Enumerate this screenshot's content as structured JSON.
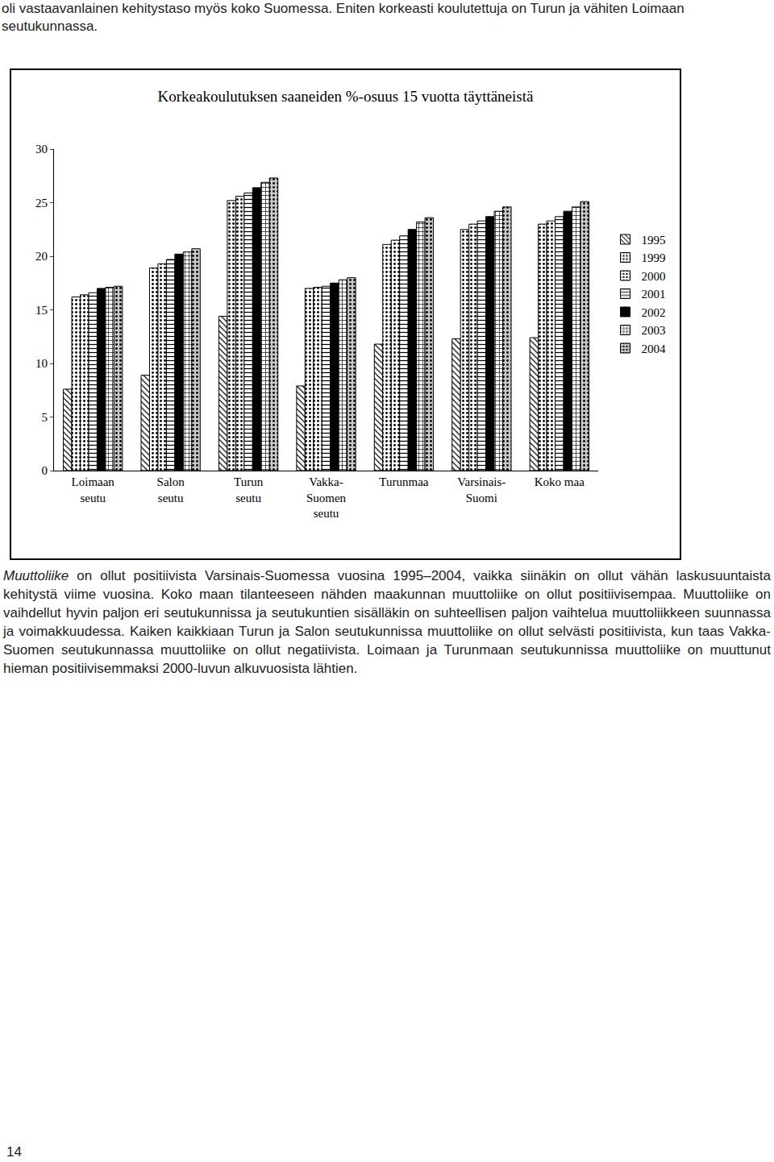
{
  "header": {
    "text": "oli vastaavanlainen kehitystaso myös koko Suomessa. Eniten korkeasti koulutettuja on Turun ja vähiten Loimaan seutukunnassa."
  },
  "chart_data": {
    "type": "bar",
    "title": "Korkeakoulutuksen saaneiden %-osuus 15 vuotta täyttäneistä",
    "categories": [
      "Loimaan\nseutu",
      "Salon\nseutu",
      "Turun\nseutu",
      "Vakka-\nSuomen\nseutu",
      "Turunmaa",
      "Varsinais-\nSuomi",
      "Koko maa"
    ],
    "series": [
      {
        "name": "1995",
        "color": "#ffffff",
        "values": [
          7.6,
          8.9,
          14.4,
          7.9,
          11.8,
          12.3,
          12.4
        ]
      },
      {
        "name": "1999",
        "color": "#ffffff",
        "values": [
          16.2,
          18.9,
          25.2,
          17.0,
          21.1,
          22.5,
          23.0
        ]
      },
      {
        "name": "2000",
        "color": "#ffffff",
        "values": [
          16.4,
          19.3,
          25.6,
          17.1,
          21.5,
          23.0,
          23.3
        ]
      },
      {
        "name": "2001",
        "color": "#ffffff",
        "values": [
          16.6,
          19.7,
          25.9,
          17.2,
          21.9,
          23.3,
          23.7
        ]
      },
      {
        "name": "2002",
        "color": "#000000",
        "values": [
          17.0,
          20.2,
          26.4,
          17.5,
          22.5,
          23.7,
          24.2
        ]
      },
      {
        "name": "2003",
        "color": "#ffffff",
        "values": [
          17.1,
          20.4,
          26.9,
          17.8,
          23.2,
          24.2,
          24.6
        ]
      },
      {
        "name": "2004",
        "color": "#c8c8c8",
        "values": [
          17.2,
          20.7,
          27.3,
          18.0,
          23.6,
          24.6,
          25.1
        ]
      }
    ],
    "ylim": [
      0,
      30
    ],
    "yticks": [
      0,
      5,
      10,
      15,
      20,
      25,
      30
    ],
    "grid": false,
    "legend": "right"
  },
  "paragraph": {
    "lead": "Muuttoliike",
    "text": " on ollut positiivista Varsinais-Suomessa vuosina 1995–2004, vaikka siinäkin on ollut vähän laskusuuntaista kehitystä viime vuosina. Koko maan tilanteeseen nähden maakunnan muuttoliike on ollut positiivisempaa. Muuttoliike on vaihdellut hyvin paljon eri seutukunnissa ja seutukuntien sisälläkin on suhteellisen paljon vaihtelua muuttoliikkeen suunnassa ja voimakkuudessa. Kaiken kaikkiaan Turun ja Salon seutukunnissa muuttoliike on ollut selvästi positiivista, kun taas Vakka-Suomen seutukunnassa muuttoliike on ollut negatiivista. Loimaan ja Turunmaan seutukunnissa muuttoliike on muuttunut hieman positiivisemmaksi 2000-luvun alkuvuosista lähtien."
  },
  "page_number": "14"
}
